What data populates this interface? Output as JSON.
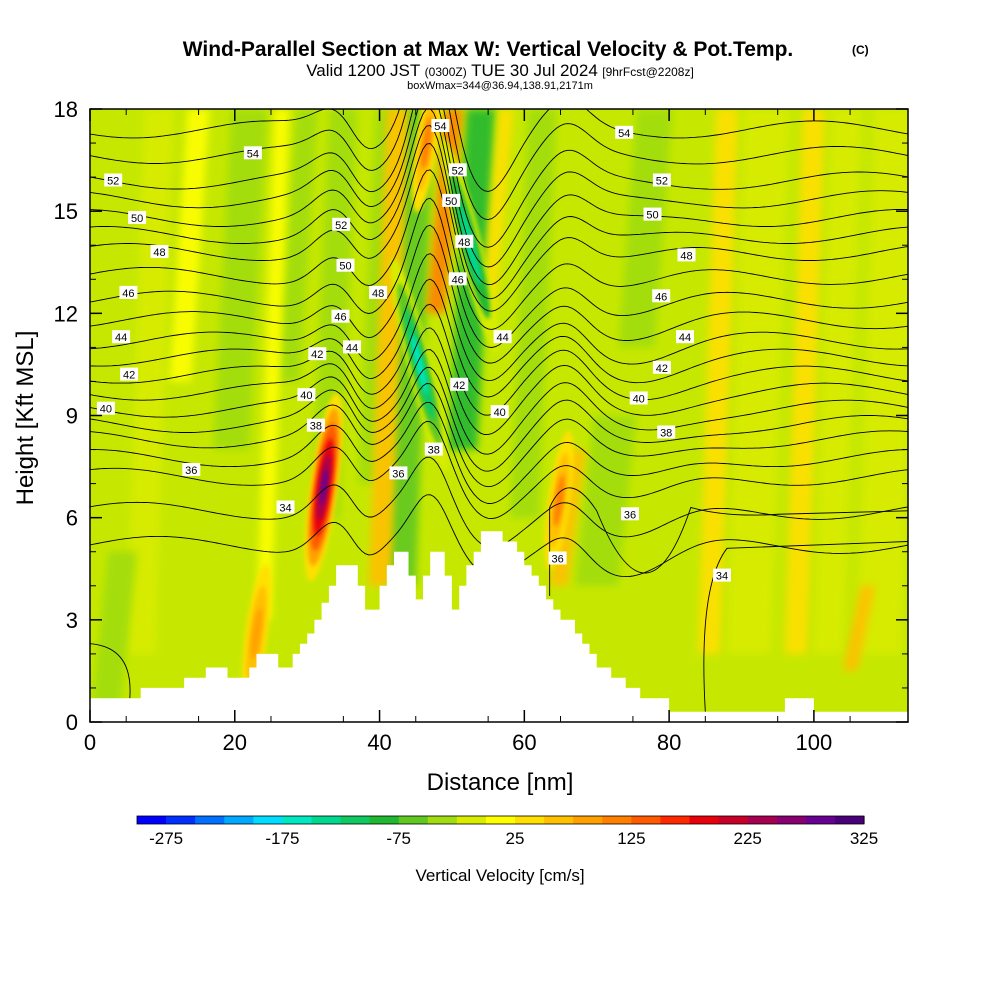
{
  "chart_data": {
    "type": "heatmap",
    "title": "Wind-Parallel Section at Max W: Vertical Velocity & Pot.Temp.",
    "title_copyright": "(C)",
    "subtitle_valid": "Valid 1200 JST",
    "subtitle_utc": "(0300Z)",
    "subtitle_date": "TUE 30 Jul 2024",
    "subtitle_fcst": "[9hrFcst@2208z]",
    "subtitle_box": "boxWmax=344@36.94,138.91,2171m",
    "xlabel": "Distance [nm]",
    "ylabel": "Height [Kft MSL]",
    "xlim": [
      0,
      113
    ],
    "ylim": [
      0,
      18
    ],
    "xticks": [
      0,
      20,
      40,
      60,
      80,
      100
    ],
    "yticks": [
      0,
      3,
      6,
      9,
      12,
      15,
      18
    ],
    "colorbar": {
      "label": "Vertical Velocity [cm/s]",
      "min": -300,
      "max": 325,
      "step": 25,
      "tick_values": [
        -275,
        -175,
        -75,
        25,
        125,
        225,
        325
      ],
      "colors": [
        "#0000ff",
        "#0030ff",
        "#0070ff",
        "#00a8ff",
        "#00ddff",
        "#00e8c0",
        "#00d890",
        "#10c860",
        "#20b830",
        "#60c820",
        "#a0dc10",
        "#d8ec00",
        "#ffff00",
        "#ffe000",
        "#ffc000",
        "#ffa000",
        "#ff8000",
        "#ff5a00",
        "#ff2800",
        "#e8000a",
        "#c80028",
        "#a80050",
        "#880070",
        "#680090",
        "#4a0078"
      ]
    },
    "terrain_nm_kft": [
      [
        0,
        0.7
      ],
      [
        7,
        0.7
      ],
      [
        7,
        1
      ],
      [
        13,
        1
      ],
      [
        13,
        1.3
      ],
      [
        16,
        1.3
      ],
      [
        16,
        1.6
      ],
      [
        19,
        1.6
      ],
      [
        19,
        1.3
      ],
      [
        22,
        1.3
      ],
      [
        22,
        1.6
      ],
      [
        23,
        1.6
      ],
      [
        23,
        2.0
      ],
      [
        26,
        2.0
      ],
      [
        26,
        1.6
      ],
      [
        28,
        1.6
      ],
      [
        28,
        2.0
      ],
      [
        29,
        2.0
      ],
      [
        29,
        2.3
      ],
      [
        30,
        2.3
      ],
      [
        30,
        2.6
      ],
      [
        31,
        2.6
      ],
      [
        31,
        3.0
      ],
      [
        32,
        3.0
      ],
      [
        32,
        3.5
      ],
      [
        33,
        3.5
      ],
      [
        33,
        4.0
      ],
      [
        34,
        4.0
      ],
      [
        34,
        4.6
      ],
      [
        37,
        4.6
      ],
      [
        37,
        4.0
      ],
      [
        38,
        4.0
      ],
      [
        38,
        3.3
      ],
      [
        40,
        3.3
      ],
      [
        40,
        4.0
      ],
      [
        41,
        4.0
      ],
      [
        41,
        4.6
      ],
      [
        42,
        4.6
      ],
      [
        42,
        5.0
      ],
      [
        44,
        5.0
      ],
      [
        44,
        4.3
      ],
      [
        45,
        4.3
      ],
      [
        45,
        3.6
      ],
      [
        46,
        3.6
      ],
      [
        46,
        4.3
      ],
      [
        47,
        4.3
      ],
      [
        47,
        5.0
      ],
      [
        49,
        5.0
      ],
      [
        49,
        4.3
      ],
      [
        50,
        4.3
      ],
      [
        50,
        3.3
      ],
      [
        51,
        3.3
      ],
      [
        51,
        4.0
      ],
      [
        52,
        4.0
      ],
      [
        52,
        4.6
      ],
      [
        53,
        4.6
      ],
      [
        53,
        5.0
      ],
      [
        54,
        5.0
      ],
      [
        54,
        5.6
      ],
      [
        57,
        5.6
      ],
      [
        57,
        5.3
      ],
      [
        59,
        5.3
      ],
      [
        59,
        5.0
      ],
      [
        60,
        5.0
      ],
      [
        60,
        4.6
      ],
      [
        61,
        4.6
      ],
      [
        61,
        4.3
      ],
      [
        62,
        4.3
      ],
      [
        62,
        4.0
      ],
      [
        63,
        4.0
      ],
      [
        63,
        3.6
      ],
      [
        64,
        3.6
      ],
      [
        64,
        3.3
      ],
      [
        65,
        3.3
      ],
      [
        65,
        3.0
      ],
      [
        67,
        3.0
      ],
      [
        67,
        2.6
      ],
      [
        68,
        2.6
      ],
      [
        68,
        2.3
      ],
      [
        69,
        2.3
      ],
      [
        69,
        2.0
      ],
      [
        70,
        2.0
      ],
      [
        70,
        1.6
      ],
      [
        72,
        1.6
      ],
      [
        72,
        1.3
      ],
      [
        74,
        1.3
      ],
      [
        74,
        1.0
      ],
      [
        76,
        1.0
      ],
      [
        76,
        0.7
      ],
      [
        80,
        0.7
      ],
      [
        80,
        0.3
      ],
      [
        96,
        0.3
      ],
      [
        96,
        0.7
      ],
      [
        100,
        0.7
      ],
      [
        100,
        0.3
      ],
      [
        113,
        0.3
      ]
    ],
    "updraft_cores": [
      {
        "x": 32.3,
        "y": 6.9,
        "value": 290
      },
      {
        "x": 64.8,
        "y": 6.5,
        "value": 120
      },
      {
        "x": 23.0,
        "y": 2.6,
        "value": 90
      },
      {
        "x": 46.5,
        "y": 17.0,
        "value": 110
      }
    ],
    "downdraft_cores": [
      {
        "x": 45.5,
        "y": 10.5,
        "value": -160
      },
      {
        "x": 52.5,
        "y": 14.0,
        "value": -130
      }
    ],
    "contour_series_kelvin_offset": [
      {
        "name": "34",
        "y_left": 5.2
      },
      {
        "name": "36",
        "y_left": 7.2
      },
      {
        "name": "38",
        "y_left": 8.3
      },
      {
        "name": "40",
        "y_left": 9.2
      },
      {
        "name": "42",
        "y_left": 10.2
      },
      {
        "name": "44",
        "y_left": 11.2
      },
      {
        "name": "46",
        "y_left": 12.4
      },
      {
        "name": "48",
        "y_left": 13.8
      },
      {
        "name": "50",
        "y_left": 14.8
      },
      {
        "name": "52",
        "y_left": 15.9
      },
      {
        "name": "54",
        "y_left": 17.4
      }
    ],
    "contour_labels": [
      {
        "text": "52",
        "x": 3.2,
        "y": 15.9
      },
      {
        "text": "50",
        "x": 6.5,
        "y": 14.8
      },
      {
        "text": "48",
        "x": 9.6,
        "y": 13.8
      },
      {
        "text": "46",
        "x": 5.3,
        "y": 12.6
      },
      {
        "text": "44",
        "x": 4.3,
        "y": 11.3
      },
      {
        "text": "42",
        "x": 5.4,
        "y": 10.2
      },
      {
        "text": "40",
        "x": 2.2,
        "y": 9.2
      },
      {
        "text": "36",
        "x": 14.0,
        "y": 7.4
      },
      {
        "text": "34",
        "x": 27.0,
        "y": 6.3
      },
      {
        "text": "54",
        "x": 22.5,
        "y": 16.7
      },
      {
        "text": "52",
        "x": 34.7,
        "y": 14.6
      },
      {
        "text": "50",
        "x": 35.3,
        "y": 13.4
      },
      {
        "text": "48",
        "x": 39.8,
        "y": 12.6
      },
      {
        "text": "46",
        "x": 34.6,
        "y": 11.9
      },
      {
        "text": "44",
        "x": 36.2,
        "y": 11.0
      },
      {
        "text": "42",
        "x": 31.4,
        "y": 10.8
      },
      {
        "text": "40",
        "x": 29.9,
        "y": 9.6
      },
      {
        "text": "38",
        "x": 31.2,
        "y": 8.7
      },
      {
        "text": "36",
        "x": 42.6,
        "y": 7.3
      },
      {
        "text": "38",
        "x": 47.5,
        "y": 8.0
      },
      {
        "text": "54",
        "x": 48.4,
        "y": 17.5
      },
      {
        "text": "52",
        "x": 50.8,
        "y": 16.2
      },
      {
        "text": "50",
        "x": 49.9,
        "y": 15.3
      },
      {
        "text": "48",
        "x": 51.7,
        "y": 14.1
      },
      {
        "text": "46",
        "x": 50.8,
        "y": 13.0
      },
      {
        "text": "44",
        "x": 57.0,
        "y": 11.3
      },
      {
        "text": "42",
        "x": 51.0,
        "y": 9.9
      },
      {
        "text": "40",
        "x": 56.6,
        "y": 9.1
      },
      {
        "text": "36",
        "x": 64.6,
        "y": 4.8
      },
      {
        "text": "54",
        "x": 73.8,
        "y": 17.3
      },
      {
        "text": "52",
        "x": 79.0,
        "y": 15.9
      },
      {
        "text": "50",
        "x": 77.7,
        "y": 14.9
      },
      {
        "text": "48",
        "x": 82.4,
        "y": 13.7
      },
      {
        "text": "46",
        "x": 78.9,
        "y": 12.5
      },
      {
        "text": "44",
        "x": 82.2,
        "y": 11.3
      },
      {
        "text": "42",
        "x": 79.0,
        "y": 10.4
      },
      {
        "text": "40",
        "x": 75.8,
        "y": 9.5
      },
      {
        "text": "38",
        "x": 79.6,
        "y": 8.5
      },
      {
        "text": "36",
        "x": 74.6,
        "y": 6.1
      },
      {
        "text": "34",
        "x": 87.3,
        "y": 4.3
      }
    ]
  }
}
